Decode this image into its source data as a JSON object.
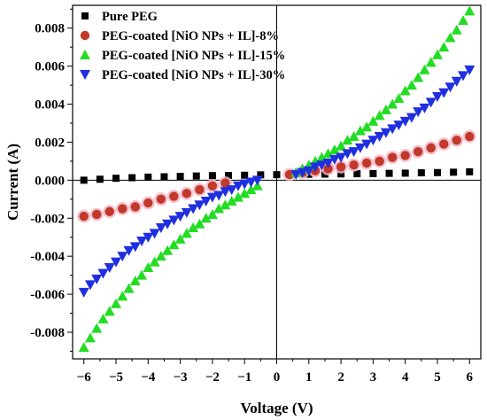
{
  "chart_data": {
    "type": "scatter",
    "xlabel": "Voltage (V)",
    "ylabel": "Current (A)",
    "xlim": [
      -6.35,
      6.35
    ],
    "ylim": [
      -0.0094,
      0.0092
    ],
    "xticks": [
      -6,
      -5,
      -4,
      -3,
      -2,
      -1,
      0,
      1,
      2,
      3,
      4,
      5,
      6
    ],
    "xtick_labels": [
      "−6",
      "−5",
      "−4",
      "−3",
      "−2",
      "−1",
      "0",
      "1",
      "2",
      "3",
      "4",
      "5",
      "6"
    ],
    "yticks": [
      -0.008,
      -0.006,
      -0.004,
      -0.002,
      0.0,
      0.002,
      0.004,
      0.006,
      0.008
    ],
    "ytick_labels": [
      "-0.008",
      "-0.006",
      "-0.004",
      "-0.002",
      "0.000",
      "0.002",
      "0.004",
      "0.006",
      "0.008"
    ],
    "legend_position": "top-left",
    "zero_lines": true,
    "grid": false,
    "series": [
      {
        "name": "Pure PEG",
        "marker": "square",
        "color": "#000000",
        "halo": null,
        "points": [
          [
            -6.0,
            0.0
          ],
          [
            -5.5,
            5e-05
          ],
          [
            -5.0,
            0.0001
          ],
          [
            -4.5,
            0.00013
          ],
          [
            -4.0,
            0.00016
          ],
          [
            -3.5,
            0.00018
          ],
          [
            -3.0,
            0.0002
          ],
          [
            -2.5,
            0.00022
          ],
          [
            -2.0,
            0.00024
          ],
          [
            -1.5,
            0.00025
          ],
          [
            -1.0,
            0.00026
          ],
          [
            -0.5,
            0.00028
          ],
          [
            0.0,
            0.00029
          ],
          [
            0.5,
            0.0003
          ],
          [
            1.0,
            0.00031
          ],
          [
            1.5,
            0.00032
          ],
          [
            2.0,
            0.00033
          ],
          [
            2.5,
            0.00034
          ],
          [
            3.0,
            0.00035
          ],
          [
            3.5,
            0.00036
          ],
          [
            4.0,
            0.00037
          ],
          [
            4.5,
            0.00039
          ],
          [
            5.0,
            0.0004
          ],
          [
            5.5,
            0.00042
          ],
          [
            6.0,
            0.00044
          ]
        ]
      },
      {
        "name": "PEG-coated [NiO NPs + IL]-8%",
        "marker": "circle",
        "color": "#c0392b",
        "halo": "#f5b8c8",
        "points": [
          [
            -6.0,
            -0.0019
          ],
          [
            -5.6,
            -0.0018
          ],
          [
            -5.2,
            -0.00165
          ],
          [
            -4.8,
            -0.0015
          ],
          [
            -4.4,
            -0.0014
          ],
          [
            -4.0,
            -0.0012
          ],
          [
            -3.6,
            -0.001
          ],
          [
            -3.2,
            -0.00085
          ],
          [
            -2.8,
            -0.0007
          ],
          [
            -2.4,
            -0.0005
          ],
          [
            -2.0,
            -0.0003
          ],
          [
            -1.6,
            -0.00015
          ],
          [
            0.4,
            0.0003
          ],
          [
            0.8,
            0.0004
          ],
          [
            1.2,
            0.0005
          ],
          [
            1.6,
            0.0006
          ],
          [
            2.0,
            0.0007
          ],
          [
            2.4,
            0.0008
          ],
          [
            2.8,
            0.0009
          ],
          [
            3.2,
            0.001
          ],
          [
            3.6,
            0.0012
          ],
          [
            4.0,
            0.0013
          ],
          [
            4.4,
            0.0015
          ],
          [
            4.8,
            0.0017
          ],
          [
            5.2,
            0.0019
          ],
          [
            5.6,
            0.0021
          ],
          [
            6.0,
            0.0023
          ]
        ]
      },
      {
        "name": "PEG-coated [NiO NPs + IL]-15%",
        "marker": "triangle-up",
        "color": "#22dd22",
        "halo": null,
        "points": [
          [
            -6.0,
            -0.0088
          ],
          [
            -5.8,
            -0.0083
          ],
          [
            -5.6,
            -0.0078
          ],
          [
            -5.4,
            -0.0073
          ],
          [
            -5.2,
            -0.0069
          ],
          [
            -5.0,
            -0.0065
          ],
          [
            -4.8,
            -0.0061
          ],
          [
            -4.6,
            -0.0057
          ],
          [
            -4.4,
            -0.0053
          ],
          [
            -4.2,
            -0.005
          ],
          [
            -4.0,
            -0.0046
          ],
          [
            -3.8,
            -0.0043
          ],
          [
            -3.6,
            -0.004
          ],
          [
            -3.4,
            -0.0037
          ],
          [
            -3.2,
            -0.0034
          ],
          [
            -3.0,
            -0.0031
          ],
          [
            -2.8,
            -0.0028
          ],
          [
            -2.6,
            -0.0025
          ],
          [
            -2.4,
            -0.0023
          ],
          [
            -2.2,
            -0.002
          ],
          [
            -2.0,
            -0.0018
          ],
          [
            -1.8,
            -0.0015
          ],
          [
            -1.6,
            -0.0013
          ],
          [
            -1.4,
            -0.0011
          ],
          [
            -1.2,
            -0.0009
          ],
          [
            -1.0,
            -0.0007
          ],
          [
            -0.8,
            -0.0005
          ],
          [
            -0.6,
            -0.0003
          ],
          [
            0.6,
            0.0004
          ],
          [
            0.8,
            0.0006
          ],
          [
            1.0,
            0.0008
          ],
          [
            1.2,
            0.001
          ],
          [
            1.4,
            0.0012
          ],
          [
            1.6,
            0.0014
          ],
          [
            1.8,
            0.0016
          ],
          [
            2.0,
            0.0018
          ],
          [
            2.2,
            0.0021
          ],
          [
            2.4,
            0.0023
          ],
          [
            2.6,
            0.0026
          ],
          [
            2.8,
            0.0028
          ],
          [
            3.0,
            0.0031
          ],
          [
            3.2,
            0.0034
          ],
          [
            3.4,
            0.0037
          ],
          [
            3.6,
            0.004
          ],
          [
            3.8,
            0.0043
          ],
          [
            4.0,
            0.0047
          ],
          [
            4.2,
            0.005
          ],
          [
            4.4,
            0.0054
          ],
          [
            4.6,
            0.0058
          ],
          [
            4.8,
            0.0062
          ],
          [
            5.0,
            0.0066
          ],
          [
            5.2,
            0.007
          ],
          [
            5.4,
            0.0075
          ],
          [
            5.6,
            0.0079
          ],
          [
            5.8,
            0.0084
          ],
          [
            6.0,
            0.0089
          ]
        ]
      },
      {
        "name": "PEG-coated [NiO NPs + IL]-30%",
        "marker": "triangle-down",
        "color": "#1f2fe0",
        "halo": null,
        "points": [
          [
            -6.0,
            -0.0059
          ],
          [
            -5.8,
            -0.0055
          ],
          [
            -5.6,
            -0.0052
          ],
          [
            -5.4,
            -0.0049
          ],
          [
            -5.2,
            -0.0046
          ],
          [
            -5.0,
            -0.0043
          ],
          [
            -4.8,
            -0.004
          ],
          [
            -4.6,
            -0.0037
          ],
          [
            -4.4,
            -0.0035
          ],
          [
            -4.2,
            -0.0032
          ],
          [
            -4.0,
            -0.003
          ],
          [
            -3.8,
            -0.0028
          ],
          [
            -3.6,
            -0.0025
          ],
          [
            -3.4,
            -0.0023
          ],
          [
            -3.2,
            -0.0021
          ],
          [
            -3.0,
            -0.0019
          ],
          [
            -2.8,
            -0.0017
          ],
          [
            -2.6,
            -0.0015
          ],
          [
            -2.4,
            -0.0013
          ],
          [
            -2.2,
            -0.0011
          ],
          [
            -2.0,
            -0.0009
          ],
          [
            -1.8,
            -0.0008
          ],
          [
            -1.6,
            -0.0006
          ],
          [
            -1.4,
            -0.0005
          ],
          [
            -1.2,
            -0.0003
          ],
          [
            -1.0,
            -0.0002
          ],
          [
            -0.8,
            -0.0001
          ],
          [
            -0.6,
            0.0
          ],
          [
            0.6,
            0.0003
          ],
          [
            0.8,
            0.0004
          ],
          [
            1.0,
            0.0005
          ],
          [
            1.2,
            0.0007
          ],
          [
            1.4,
            0.0008
          ],
          [
            1.6,
            0.0009
          ],
          [
            1.8,
            0.0011
          ],
          [
            2.0,
            0.0012
          ],
          [
            2.2,
            0.0014
          ],
          [
            2.4,
            0.0015
          ],
          [
            2.6,
            0.0017
          ],
          [
            2.8,
            0.0019
          ],
          [
            3.0,
            0.0021
          ],
          [
            3.2,
            0.0023
          ],
          [
            3.4,
            0.0025
          ],
          [
            3.6,
            0.0027
          ],
          [
            3.8,
            0.0029
          ],
          [
            4.0,
            0.0031
          ],
          [
            4.2,
            0.0033
          ],
          [
            4.4,
            0.0036
          ],
          [
            4.6,
            0.0038
          ],
          [
            4.8,
            0.0041
          ],
          [
            5.0,
            0.0044
          ],
          [
            5.2,
            0.0046
          ],
          [
            5.4,
            0.0049
          ],
          [
            5.6,
            0.0052
          ],
          [
            5.8,
            0.0055
          ],
          [
            6.0,
            0.0058
          ]
        ]
      }
    ]
  }
}
